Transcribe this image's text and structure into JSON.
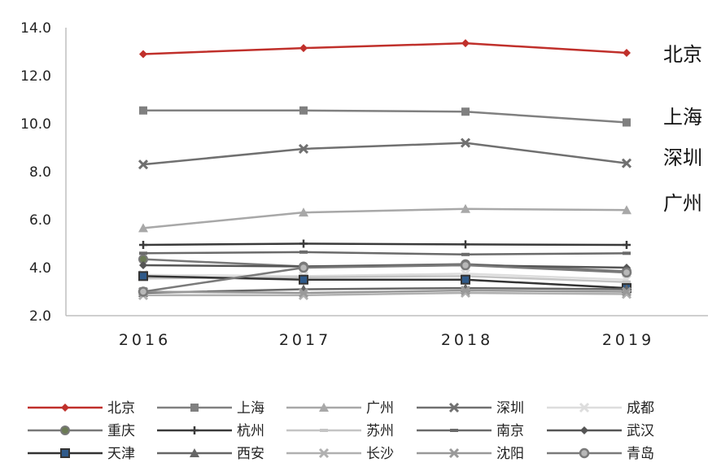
{
  "chart_data": {
    "type": "line",
    "title": "",
    "xlabel": "",
    "ylabel": "",
    "x": [
      "2016",
      "2017",
      "2018",
      "2019"
    ],
    "ylim": [
      2.0,
      14.0
    ],
    "yticks": [
      "2.0",
      "4.0",
      "6.0",
      "8.0",
      "10.0",
      "12.0",
      "14.0"
    ],
    "grid": false,
    "legend_position": "bottom",
    "end_labels": [
      "北京",
      "上海",
      "深圳",
      "广州"
    ],
    "series": [
      {
        "name": "北京",
        "values": [
          12.9,
          13.15,
          13.35,
          12.95
        ],
        "color": "#c0302b",
        "marker": "diamond",
        "width": 2.5
      },
      {
        "name": "上海",
        "values": [
          10.55,
          10.55,
          10.5,
          10.05
        ],
        "color": "#808080",
        "marker": "square",
        "width": 2.5
      },
      {
        "name": "广州",
        "values": [
          5.65,
          6.3,
          6.45,
          6.4
        ],
        "color": "#a8a8a8",
        "marker": "triangle",
        "width": 2.5
      },
      {
        "name": "深圳",
        "values": [
          8.3,
          8.95,
          9.2,
          8.35
        ],
        "color": "#707070",
        "marker": "x",
        "width": 2.5
      },
      {
        "name": "成都",
        "values": [
          3.7,
          3.65,
          3.75,
          3.5
        ],
        "color": "#dddddd",
        "marker": "x",
        "width": 2.5
      },
      {
        "name": "重庆",
        "values": [
          4.35,
          4.05,
          4.15,
          3.85
        ],
        "color": "#787878",
        "marker": "circle-fill",
        "width": 2.5
      },
      {
        "name": "杭州",
        "values": [
          4.95,
          5.0,
          4.97,
          4.95
        ],
        "color": "#3a3a3a",
        "marker": "plus",
        "width": 2.5
      },
      {
        "name": "苏州",
        "values": [
          3.55,
          3.6,
          3.65,
          3.4
        ],
        "color": "#c4c4c4",
        "marker": "dash",
        "width": 2.5
      },
      {
        "name": "南京",
        "values": [
          4.6,
          4.65,
          4.55,
          4.6
        ],
        "color": "#6a6a6a",
        "marker": "dash",
        "width": 2.5
      },
      {
        "name": "武汉",
        "values": [
          4.1,
          4.05,
          4.1,
          4.0
        ],
        "color": "#555555",
        "marker": "diamond",
        "width": 2.5
      },
      {
        "name": "天津",
        "values": [
          3.65,
          3.5,
          3.5,
          3.15
        ],
        "color": "#333333",
        "marker": "square-blue",
        "width": 2.5
      },
      {
        "name": "西安",
        "values": [
          2.95,
          3.1,
          3.15,
          3.1
        ],
        "color": "#666666",
        "marker": "triangle",
        "width": 2.5
      },
      {
        "name": "长沙",
        "values": [
          2.85,
          2.85,
          2.95,
          2.9
        ],
        "color": "#b0b0b0",
        "marker": "x",
        "width": 2.5
      },
      {
        "name": "沈阳",
        "values": [
          3.0,
          2.95,
          3.05,
          3.0
        ],
        "color": "#999999",
        "marker": "x",
        "width": 2.5
      },
      {
        "name": "青岛",
        "values": [
          3.0,
          4.0,
          4.1,
          3.8
        ],
        "color": "#7a7a7a",
        "marker": "circle-ring",
        "width": 2.5
      }
    ]
  }
}
